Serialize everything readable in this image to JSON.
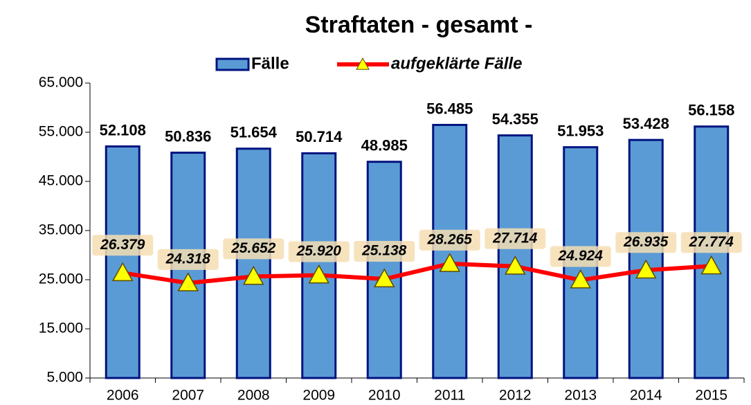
{
  "chart_data": {
    "type": "bar",
    "title": "Straftaten - gesamt -",
    "categories": [
      "2006",
      "2007",
      "2008",
      "2009",
      "2010",
      "2011",
      "2012",
      "2013",
      "2014",
      "2015"
    ],
    "series": [
      {
        "name": "Fälle",
        "type": "bar",
        "color": "#5b9bd5",
        "values": [
          52108,
          50836,
          51654,
          50714,
          48985,
          56485,
          54355,
          51953,
          53428,
          56158
        ],
        "value_labels": [
          "52.108",
          "50.836",
          "51.654",
          "50.714",
          "48.985",
          "56.485",
          "54.355",
          "51.953",
          "53.428",
          "56.158"
        ]
      },
      {
        "name": "aufgeklärte Fälle",
        "type": "line",
        "color": "#ff0000",
        "values": [
          26379,
          24318,
          25652,
          25920,
          25138,
          28265,
          27714,
          24924,
          26935,
          27774
        ],
        "value_labels": [
          "26.379",
          "24.318",
          "25.652",
          "25.920",
          "25.138",
          "28.265",
          "27.714",
          "24.924",
          "26.935",
          "27.774"
        ]
      }
    ],
    "ylim": [
      5000,
      65000
    ],
    "yticks": [
      {
        "value": 5000,
        "label": "5.000"
      },
      {
        "value": 15000,
        "label": "15.000"
      },
      {
        "value": 25000,
        "label": "25.000"
      },
      {
        "value": 35000,
        "label": "35.000"
      },
      {
        "value": 45000,
        "label": "45.000"
      },
      {
        "value": 55000,
        "label": "55.000"
      },
      {
        "value": 65000,
        "label": "65.000"
      }
    ],
    "legend": "top"
  }
}
